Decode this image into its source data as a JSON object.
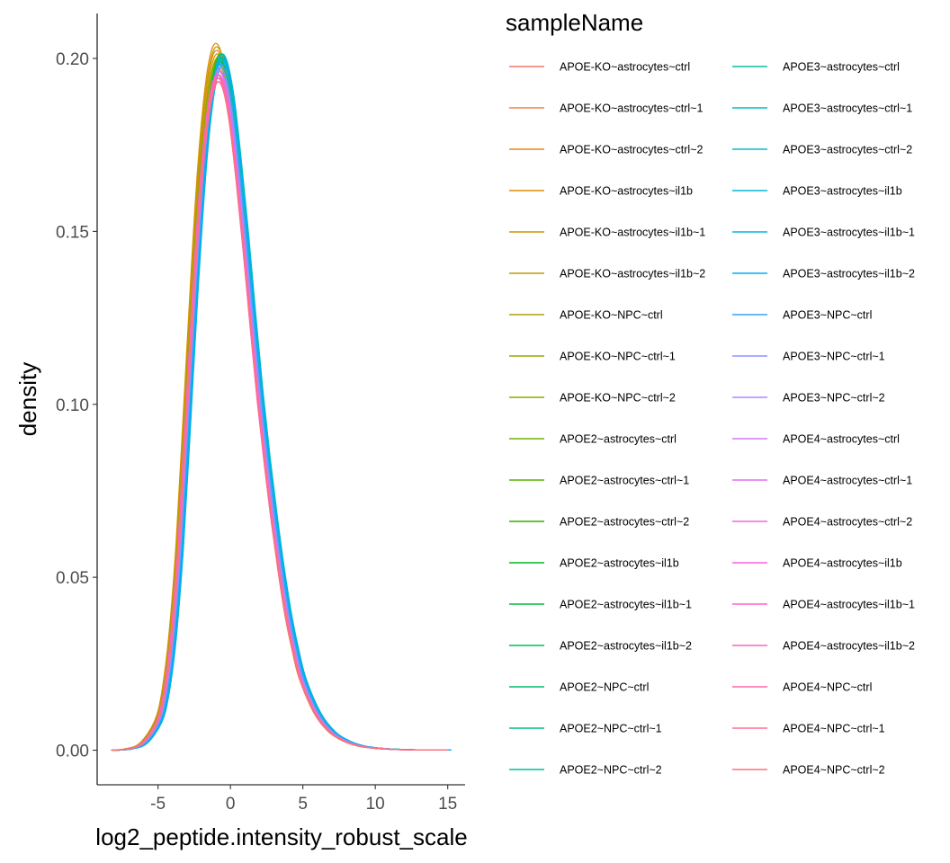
{
  "chart_data": {
    "type": "line",
    "title": "",
    "xlabel": "log2_peptide.intensity_robust_scale",
    "ylabel": "density",
    "xlim": [
      -9.2,
      16.2
    ],
    "ylim": [
      -0.01,
      0.213
    ],
    "x_ticks": [
      -5,
      0,
      5,
      10,
      15
    ],
    "x_tick_labels": [
      "-5",
      "0",
      "5",
      "10",
      "15"
    ],
    "y_ticks": [
      0.0,
      0.05,
      0.1,
      0.15,
      0.2
    ],
    "y_tick_labels": [
      "0.00",
      "0.05",
      "0.10",
      "0.15",
      "0.20"
    ],
    "grid": false,
    "legend": {
      "title": "sampleName",
      "placement": "right",
      "columns": 2
    },
    "curve_x": [
      -8,
      -7,
      -6,
      -5,
      -4.5,
      -4,
      -3.5,
      -3,
      -2.5,
      -2,
      -1.5,
      -1,
      -0.5,
      0,
      0.5,
      1,
      1.5,
      2,
      2.5,
      3,
      3.5,
      4,
      4.5,
      5,
      6,
      7,
      8,
      9,
      10,
      11,
      12,
      13,
      14,
      15
    ],
    "reference_density": [
      0.0,
      0.0004,
      0.002,
      0.008,
      0.016,
      0.032,
      0.058,
      0.094,
      0.131,
      0.163,
      0.185,
      0.196,
      0.196,
      0.186,
      0.168,
      0.147,
      0.124,
      0.102,
      0.083,
      0.066,
      0.051,
      0.038,
      0.028,
      0.02,
      0.0105,
      0.0052,
      0.0026,
      0.0012,
      0.0006,
      0.0003,
      0.00015,
      8e-05,
      4e-05,
      2e-05
    ],
    "series": [
      {
        "name": "APOE-KO~astrocytes~ctrl",
        "color": "#F8766D",
        "shift": -0.1,
        "peak": 0.196
      },
      {
        "name": "APOE-KO~astrocytes~ctrl~1",
        "color": "#F17E52",
        "shift": -0.05,
        "peak": 0.198
      },
      {
        "name": "APOE-KO~astrocytes~ctrl~2",
        "color": "#E7861B",
        "shift": -0.2,
        "peak": 0.201
      },
      {
        "name": "APOE-KO~astrocytes~il1b",
        "color": "#DB8E00",
        "shift": -0.25,
        "peak": 0.203
      },
      {
        "name": "APOE-KO~astrocytes~il1b~1",
        "color": "#CF9400",
        "shift": -0.15,
        "peak": 0.2
      },
      {
        "name": "APOE-KO~astrocytes~il1b~2",
        "color": "#C09B00",
        "shift": -0.2,
        "peak": 0.202
      },
      {
        "name": "APOE-KO~NPC~ctrl",
        "color": "#B0A100",
        "shift": -0.1,
        "peak": 0.199
      },
      {
        "name": "APOE-KO~NPC~ctrl~1",
        "color": "#9CA700",
        "shift": -0.05,
        "peak": 0.197
      },
      {
        "name": "APOE-KO~NPC~ctrl~2",
        "color": "#89AC00",
        "shift": -0.15,
        "peak": 0.198
      },
      {
        "name": "APOE2~astrocytes~ctrl",
        "color": "#6FB000",
        "shift": 0.0,
        "peak": 0.199
      },
      {
        "name": "APOE2~astrocytes~ctrl~1",
        "color": "#53B400",
        "shift": 0.05,
        "peak": 0.2
      },
      {
        "name": "APOE2~astrocytes~ctrl~2",
        "color": "#2CB600",
        "shift": 0.0,
        "peak": 0.198
      },
      {
        "name": "APOE2~astrocytes~il1b",
        "color": "#00B81F",
        "shift": 0.1,
        "peak": 0.197
      },
      {
        "name": "APOE2~astrocytes~il1b~1",
        "color": "#00BA42",
        "shift": 0.05,
        "peak": 0.198
      },
      {
        "name": "APOE2~astrocytes~il1b~2",
        "color": "#00BC5B",
        "shift": 0.1,
        "peak": 0.199
      },
      {
        "name": "APOE2~NPC~ctrl",
        "color": "#00BE70",
        "shift": 0.15,
        "peak": 0.2
      },
      {
        "name": "APOE2~NPC~ctrl~1",
        "color": "#00BF85",
        "shift": 0.2,
        "peak": 0.199
      },
      {
        "name": "APOE2~NPC~ctrl~2",
        "color": "#00C097",
        "shift": 0.2,
        "peak": 0.198
      },
      {
        "name": "APOE3~astrocytes~ctrl",
        "color": "#00C0A9",
        "shift": 0.25,
        "peak": 0.199
      },
      {
        "name": "APOE3~astrocytes~ctrl~1",
        "color": "#00BFBA",
        "shift": 0.2,
        "peak": 0.2
      },
      {
        "name": "APOE3~astrocytes~ctrl~2",
        "color": "#00BDCA",
        "shift": 0.15,
        "peak": 0.199
      },
      {
        "name": "APOE3~astrocytes~il1b",
        "color": "#00BAD8",
        "shift": 0.2,
        "peak": 0.198
      },
      {
        "name": "APOE3~astrocytes~il1b~1",
        "color": "#00B5E5",
        "shift": 0.25,
        "peak": 0.197
      },
      {
        "name": "APOE3~astrocytes~il1b~2",
        "color": "#00AFF0",
        "shift": 0.2,
        "peak": 0.199
      },
      {
        "name": "APOE3~NPC~ctrl",
        "color": "#35A2FF",
        "shift": 0.1,
        "peak": 0.197
      },
      {
        "name": "APOE3~NPC~ctrl~1",
        "color": "#8B93FF",
        "shift": 0.05,
        "peak": 0.196
      },
      {
        "name": "APOE3~NPC~ctrl~2",
        "color": "#B186FF",
        "shift": 0.0,
        "peak": 0.195
      },
      {
        "name": "APOE4~astrocytes~ctrl",
        "color": "#CF78FF",
        "shift": -0.05,
        "peak": 0.194
      },
      {
        "name": "APOE4~astrocytes~ctrl~1",
        "color": "#E36EF6",
        "shift": -0.1,
        "peak": 0.193
      },
      {
        "name": "APOE4~astrocytes~ctrl~2",
        "color": "#EF67EB",
        "shift": -0.05,
        "peak": 0.195
      },
      {
        "name": "APOE4~astrocytes~il1b",
        "color": "#F863DE",
        "shift": -0.15,
        "peak": 0.194
      },
      {
        "name": "APOE4~astrocytes~il1b~1",
        "color": "#FE61CE",
        "shift": -0.1,
        "peak": 0.193
      },
      {
        "name": "APOE4~astrocytes~il1b~2",
        "color": "#FF63BC",
        "shift": -0.05,
        "peak": 0.192
      },
      {
        "name": "APOE4~NPC~ctrl",
        "color": "#FF67A8",
        "shift": -0.1,
        "peak": 0.194
      },
      {
        "name": "APOE4~NPC~ctrl~1",
        "color": "#FF6C94",
        "shift": -0.05,
        "peak": 0.193
      },
      {
        "name": "APOE4~NPC~ctrl~2",
        "color": "#FC717F",
        "shift": -0.1,
        "peak": 0.192
      }
    ]
  }
}
